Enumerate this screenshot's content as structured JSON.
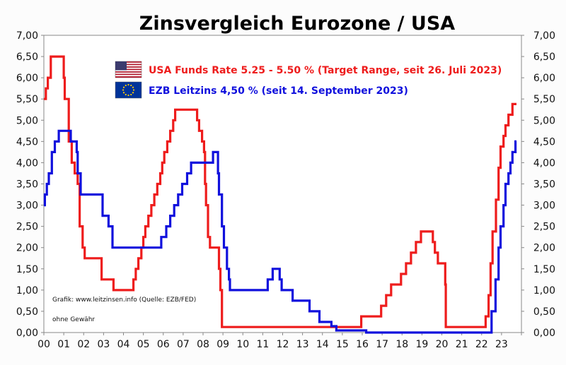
{
  "chart_data": {
    "type": "line",
    "title": "Zinsvergleich Eurozone / USA",
    "xlabel": "",
    "ylabel": "",
    "x_tick_labels": [
      "00",
      "01",
      "02",
      "03",
      "04",
      "05",
      "06",
      "07",
      "08",
      "09",
      "10",
      "11",
      "12",
      "13",
      "14",
      "15",
      "16",
      "17",
      "18",
      "19",
      "20",
      "21",
      "22",
      "23"
    ],
    "y_tick_labels": [
      "0,00",
      "0,50",
      "1,00",
      "1,50",
      "2,00",
      "2,50",
      "3,00",
      "3,50",
      "4,00",
      "4,50",
      "5,00",
      "5,50",
      "6,00",
      "6,50",
      "7,00"
    ],
    "xlim": [
      2000.0,
      2024.0
    ],
    "ylim": [
      0,
      7
    ],
    "grid": false,
    "legend_position": "top-center",
    "series": [
      {
        "name": "USA Funds Rate 5.25 - 5.50 % (Target Range, seit 26. Juli 2023)",
        "color": "#ee1c1c",
        "flag": "usa-flag",
        "points": [
          [
            2000.0,
            5.5
          ],
          [
            2000.1,
            5.75
          ],
          [
            2000.2,
            6.0
          ],
          [
            2000.35,
            6.5
          ],
          [
            2001.0,
            6.0
          ],
          [
            2001.05,
            5.5
          ],
          [
            2001.25,
            4.5
          ],
          [
            2001.4,
            4.0
          ],
          [
            2001.55,
            3.75
          ],
          [
            2001.7,
            3.5
          ],
          [
            2001.8,
            2.5
          ],
          [
            2001.95,
            2.0
          ],
          [
            2002.05,
            1.75
          ],
          [
            2002.9,
            1.25
          ],
          [
            2003.5,
            1.0
          ],
          [
            2004.5,
            1.25
          ],
          [
            2004.62,
            1.5
          ],
          [
            2004.75,
            1.75
          ],
          [
            2004.9,
            2.0
          ],
          [
            2005.0,
            2.25
          ],
          [
            2005.1,
            2.5
          ],
          [
            2005.25,
            2.75
          ],
          [
            2005.4,
            3.0
          ],
          [
            2005.55,
            3.25
          ],
          [
            2005.7,
            3.5
          ],
          [
            2005.85,
            3.75
          ],
          [
            2005.95,
            4.0
          ],
          [
            2006.05,
            4.25
          ],
          [
            2006.2,
            4.5
          ],
          [
            2006.35,
            4.75
          ],
          [
            2006.5,
            5.0
          ],
          [
            2006.6,
            5.25
          ],
          [
            2007.7,
            5.0
          ],
          [
            2007.8,
            4.75
          ],
          [
            2007.95,
            4.5
          ],
          [
            2008.05,
            4.25
          ],
          [
            2008.1,
            3.5
          ],
          [
            2008.15,
            3.0
          ],
          [
            2008.25,
            2.25
          ],
          [
            2008.35,
            2.0
          ],
          [
            2008.8,
            1.5
          ],
          [
            2008.87,
            1.0
          ],
          [
            2008.95,
            0.13
          ],
          [
            2015.95,
            0.38
          ],
          [
            2016.95,
            0.63
          ],
          [
            2017.2,
            0.88
          ],
          [
            2017.45,
            1.13
          ],
          [
            2017.95,
            1.38
          ],
          [
            2018.2,
            1.63
          ],
          [
            2018.45,
            1.88
          ],
          [
            2018.7,
            2.13
          ],
          [
            2018.95,
            2.38
          ],
          [
            2019.55,
            2.13
          ],
          [
            2019.65,
            1.88
          ],
          [
            2019.8,
            1.63
          ],
          [
            2020.17,
            1.13
          ],
          [
            2020.2,
            0.13
          ],
          [
            2022.2,
            0.38
          ],
          [
            2022.35,
            0.88
          ],
          [
            2022.45,
            1.63
          ],
          [
            2022.55,
            2.38
          ],
          [
            2022.72,
            3.13
          ],
          [
            2022.85,
            3.88
          ],
          [
            2022.95,
            4.38
          ],
          [
            2023.1,
            4.63
          ],
          [
            2023.2,
            4.88
          ],
          [
            2023.35,
            5.13
          ],
          [
            2023.55,
            5.38
          ],
          [
            2023.75,
            5.38
          ]
        ]
      },
      {
        "name": "EZB Leitzins 4,50 %  (seit 14. September 2023)",
        "color": "#1010dd",
        "flag": "eu-flag",
        "points": [
          [
            2000.0,
            3.0
          ],
          [
            2000.05,
            3.25
          ],
          [
            2000.15,
            3.5
          ],
          [
            2000.25,
            3.75
          ],
          [
            2000.4,
            4.25
          ],
          [
            2000.55,
            4.5
          ],
          [
            2000.75,
            4.75
          ],
          [
            2001.35,
            4.5
          ],
          [
            2001.65,
            4.25
          ],
          [
            2001.7,
            3.75
          ],
          [
            2001.85,
            3.25
          ],
          [
            2002.95,
            2.75
          ],
          [
            2003.25,
            2.5
          ],
          [
            2003.45,
            2.0
          ],
          [
            2005.9,
            2.25
          ],
          [
            2006.15,
            2.5
          ],
          [
            2006.35,
            2.75
          ],
          [
            2006.55,
            3.0
          ],
          [
            2006.75,
            3.25
          ],
          [
            2006.95,
            3.5
          ],
          [
            2007.2,
            3.75
          ],
          [
            2007.4,
            4.0
          ],
          [
            2008.5,
            4.25
          ],
          [
            2008.75,
            3.75
          ],
          [
            2008.8,
            3.25
          ],
          [
            2008.95,
            2.5
          ],
          [
            2009.05,
            2.0
          ],
          [
            2009.2,
            1.5
          ],
          [
            2009.3,
            1.25
          ],
          [
            2009.35,
            1.0
          ],
          [
            2011.25,
            1.25
          ],
          [
            2011.5,
            1.5
          ],
          [
            2011.85,
            1.25
          ],
          [
            2011.95,
            1.0
          ],
          [
            2012.5,
            0.75
          ],
          [
            2013.35,
            0.5
          ],
          [
            2013.85,
            0.25
          ],
          [
            2014.45,
            0.15
          ],
          [
            2014.7,
            0.05
          ],
          [
            2016.2,
            0.0
          ],
          [
            2022.5,
            0.5
          ],
          [
            2022.7,
            1.25
          ],
          [
            2022.85,
            2.0
          ],
          [
            2022.95,
            2.5
          ],
          [
            2023.1,
            3.0
          ],
          [
            2023.2,
            3.5
          ],
          [
            2023.35,
            3.75
          ],
          [
            2023.45,
            4.0
          ],
          [
            2023.55,
            4.25
          ],
          [
            2023.7,
            4.5
          ],
          [
            2023.75,
            4.5
          ]
        ]
      }
    ]
  },
  "annotations": {
    "source": "Grafik: www.leitzinsen.info (Quelle: EZB/FED)",
    "disclaimer": "ohne Gewähr"
  }
}
